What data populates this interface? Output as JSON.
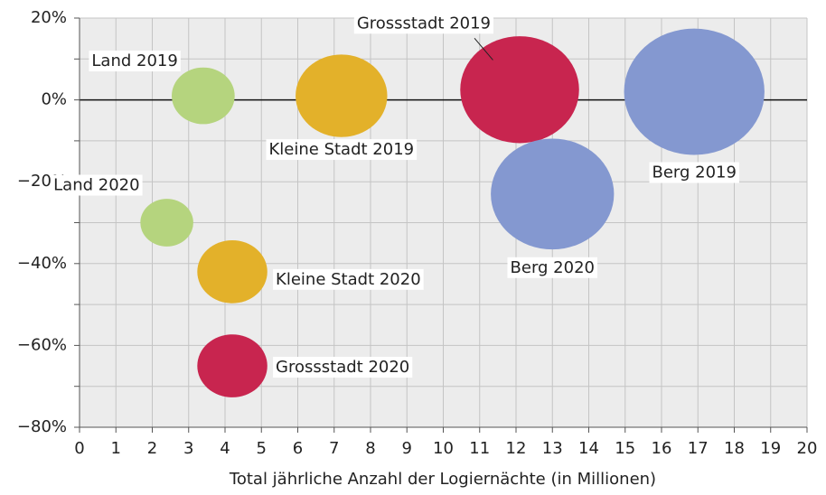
{
  "chart_data": {
    "type": "bubble",
    "xlabel": "Total jährliche Anzahl der Logiernächte (in Millionen)",
    "xlim": [
      0,
      20
    ],
    "xticks": [
      0,
      1,
      2,
      3,
      4,
      5,
      6,
      7,
      8,
      9,
      10,
      11,
      12,
      13,
      14,
      15,
      16,
      17,
      18,
      19,
      20
    ],
    "ylim": [
      -80,
      20
    ],
    "yticks": [
      {
        "value": 20,
        "label": "20%"
      },
      {
        "value": 0,
        "label": "0%"
      },
      {
        "value": -20,
        "label": "−20%"
      },
      {
        "value": -40,
        "label": "−40%"
      },
      {
        "value": -60,
        "label": "−60%"
      },
      {
        "value": -80,
        "label": "−80%"
      }
    ],
    "yminor": [
      10,
      -10,
      -30,
      -50,
      -70
    ],
    "grid": true,
    "series": [
      {
        "name": "Land 2019",
        "color": "#b5d47e",
        "x": [
          3.4
        ],
        "values": [
          1
        ]
      },
      {
        "name": "Kleine Stadt 2019",
        "color": "#e3b12a",
        "x": [
          7.2
        ],
        "values": [
          1
        ]
      },
      {
        "name": "Grossstadt 2019",
        "color": "#c8254f",
        "x": [
          12.1
        ],
        "values": [
          2.5
        ]
      },
      {
        "name": "Berg 2019",
        "color": "#8498d0",
        "x": [
          16.9
        ],
        "values": [
          2
        ]
      },
      {
        "name": "Land 2020",
        "color": "#b5d47e",
        "x": [
          2.4
        ],
        "values": [
          -30
        ]
      },
      {
        "name": "Kleine Stadt 2020",
        "color": "#e3b12a",
        "x": [
          4.2
        ],
        "values": [
          -42
        ]
      },
      {
        "name": "Grossstadt 2020",
        "color": "#c8254f",
        "x": [
          4.2
        ],
        "values": [
          -65
        ]
      },
      {
        "name": "Berg 2020",
        "color": "#8498d0",
        "x": [
          13
        ],
        "values": [
          -23
        ]
      }
    ]
  }
}
